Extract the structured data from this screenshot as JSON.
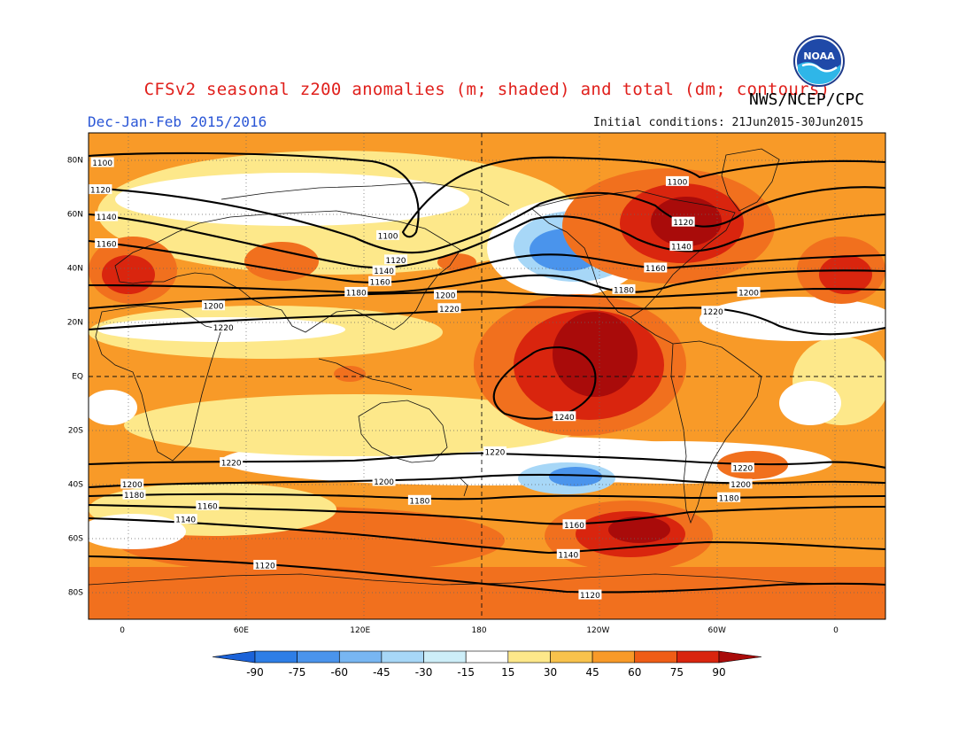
{
  "title": "CFSv2 seasonal z200 anomalies (m; shaded) and total (dm; contours)",
  "agency": "NWS/NCEP/CPC",
  "season": "Dec-Jan-Feb 2015/2016",
  "initial_conditions": "Initial conditions: 21Jun2015-30Jun2015",
  "logo_text": "NOAA",
  "map": {
    "lat_labels": [
      {
        "lat": 80,
        "label": "80N"
      },
      {
        "lat": 60,
        "label": "60N"
      },
      {
        "lat": 40,
        "label": "40N"
      },
      {
        "lat": 20,
        "label": "20N"
      },
      {
        "lat": 0,
        "label": "EQ"
      },
      {
        "lat": -20,
        "label": "20S"
      },
      {
        "lat": -40,
        "label": "40S"
      },
      {
        "lat": -60,
        "label": "60S"
      },
      {
        "lat": -80,
        "label": "80S"
      }
    ],
    "lon_labels": [
      {
        "lon": 0,
        "label": "0"
      },
      {
        "lon": 60,
        "label": "60E"
      },
      {
        "lon": 120,
        "label": "120E"
      },
      {
        "lon": 180,
        "label": "180"
      },
      {
        "lon": 240,
        "label": "120W"
      },
      {
        "lon": 300,
        "label": "60W"
      },
      {
        "lon": 360,
        "label": "0"
      }
    ],
    "contour_labels": [
      {
        "text": "1100",
        "lon": -10,
        "lat": 79
      },
      {
        "text": "1120",
        "lon": -11,
        "lat": 69
      },
      {
        "text": "1140",
        "lon": -8,
        "lat": 59
      },
      {
        "text": "1160",
        "lon": -8,
        "lat": 49
      },
      {
        "text": "1200",
        "lon": 46,
        "lat": 26
      },
      {
        "text": "1220",
        "lon": 51,
        "lat": 18
      },
      {
        "text": "1100",
        "lon": 134,
        "lat": 52
      },
      {
        "text": "1120",
        "lon": 138,
        "lat": 43
      },
      {
        "text": "1140",
        "lon": 132,
        "lat": 39
      },
      {
        "text": "1160",
        "lon": 130,
        "lat": 35
      },
      {
        "text": "1180",
        "lon": 118,
        "lat": 31
      },
      {
        "text": "1200",
        "lon": 163,
        "lat": 30
      },
      {
        "text": "1220",
        "lon": 165,
        "lat": 25
      },
      {
        "text": "1100",
        "lon": 280,
        "lat": 72
      },
      {
        "text": "1120",
        "lon": 283,
        "lat": 57
      },
      {
        "text": "1140",
        "lon": 282,
        "lat": 48
      },
      {
        "text": "1160",
        "lon": 269,
        "lat": 40
      },
      {
        "text": "1180",
        "lon": 253,
        "lat": 32
      },
      {
        "text": "1200",
        "lon": 316,
        "lat": 31
      },
      {
        "text": "1220",
        "lon": 298,
        "lat": 24
      },
      {
        "text": "1240",
        "lon": 223,
        "lat": -15
      },
      {
        "text": "1220",
        "lon": 55,
        "lat": -32
      },
      {
        "text": "1220",
        "lon": 188,
        "lat": -28
      },
      {
        "text": "1220",
        "lon": 313,
        "lat": -34
      },
      {
        "text": "1200",
        "lon": 5,
        "lat": -40
      },
      {
        "text": "1180",
        "lon": 6,
        "lat": -44
      },
      {
        "text": "1160",
        "lon": 43,
        "lat": -48
      },
      {
        "text": "1140",
        "lon": 32,
        "lat": -53
      },
      {
        "text": "1120",
        "lon": 72,
        "lat": -70
      },
      {
        "text": "1200",
        "lon": 132,
        "lat": -39
      },
      {
        "text": "1180",
        "lon": 150,
        "lat": -46
      },
      {
        "text": "1200",
        "lon": 312,
        "lat": -40
      },
      {
        "text": "1180",
        "lon": 306,
        "lat": -45
      },
      {
        "text": "1160",
        "lon": 228,
        "lat": -55
      },
      {
        "text": "1140",
        "lon": 225,
        "lat": -66
      },
      {
        "text": "1120",
        "lon": 236,
        "lat": -81
      }
    ]
  },
  "colorbar": {
    "labels": [
      "-90",
      "-75",
      "-60",
      "-45",
      "-30",
      "-15",
      "15",
      "30",
      "45",
      "60",
      "75",
      "90"
    ],
    "colors": [
      "#1b62d8",
      "#2e7ee6",
      "#4a94ec",
      "#78b6f2",
      "#a7d7f7",
      "#cdeef8",
      "#ffffff",
      "#fde88a",
      "#f8c24c",
      "#f89a28",
      "#ef5d16",
      "#d9250e",
      "#a90b0a"
    ],
    "units": "m"
  }
}
